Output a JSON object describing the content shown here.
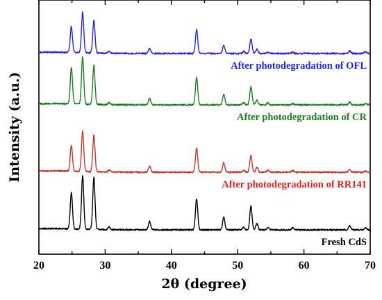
{
  "chart_data": {
    "type": "line",
    "title": "",
    "xlabel": "2θ (degree)",
    "ylabel": "Intensity (a.u.)",
    "xlim": [
      20,
      70
    ],
    "x_ticks": [
      20,
      30,
      40,
      50,
      60,
      70
    ],
    "y_ticks_labeled": false,
    "grid": false,
    "legend": "none (inline labels at right of each trace)",
    "peaks_2theta": [
      24.9,
      26.6,
      28.3,
      30.6,
      36.7,
      43.8,
      47.9,
      50.9,
      52.0,
      52.9,
      54.6,
      58.3,
      66.9,
      69.3
    ],
    "series": [
      {
        "name": "Fresh CdS",
        "color": "#000000",
        "label_color": "#000000",
        "offset": 0,
        "peaks": [
          {
            "x": 24.9,
            "h": 52
          },
          {
            "x": 26.6,
            "h": 77
          },
          {
            "x": 28.3,
            "h": 75
          },
          {
            "x": 30.6,
            "h": 4
          },
          {
            "x": 36.7,
            "h": 12
          },
          {
            "x": 43.8,
            "h": 45
          },
          {
            "x": 47.9,
            "h": 18
          },
          {
            "x": 50.9,
            "h": 4
          },
          {
            "x": 52.0,
            "h": 34
          },
          {
            "x": 52.9,
            "h": 9
          },
          {
            "x": 54.6,
            "h": 3
          },
          {
            "x": 58.3,
            "h": 3
          },
          {
            "x": 66.9,
            "h": 6
          },
          {
            "x": 69.3,
            "h": 3
          }
        ]
      },
      {
        "name": "After photodegradation of RR141",
        "color": "#c0392b",
        "label_color": "#e02020",
        "offset": 83,
        "peaks": [
          {
            "x": 24.9,
            "h": 37
          },
          {
            "x": 26.6,
            "h": 58
          },
          {
            "x": 28.3,
            "h": 53
          },
          {
            "x": 30.6,
            "h": 3
          },
          {
            "x": 36.7,
            "h": 9
          },
          {
            "x": 43.8,
            "h": 35
          },
          {
            "x": 47.9,
            "h": 14
          },
          {
            "x": 50.9,
            "h": 3
          },
          {
            "x": 52.0,
            "h": 24
          },
          {
            "x": 52.9,
            "h": 7
          },
          {
            "x": 54.6,
            "h": 3
          },
          {
            "x": 58.3,
            "h": 2
          },
          {
            "x": 66.9,
            "h": 4
          },
          {
            "x": 69.3,
            "h": 2
          }
        ]
      },
      {
        "name": "After photodegradation of CR",
        "color": "#1e7d1e",
        "label_color": "#1e7d1e",
        "offset": 180,
        "peaks": [
          {
            "x": 24.9,
            "h": 52
          },
          {
            "x": 26.6,
            "h": 68
          },
          {
            "x": 28.3,
            "h": 56
          },
          {
            "x": 30.6,
            "h": 3
          },
          {
            "x": 36.7,
            "h": 9
          },
          {
            "x": 43.8,
            "h": 40
          },
          {
            "x": 47.9,
            "h": 15
          },
          {
            "x": 50.9,
            "h": 3
          },
          {
            "x": 52.0,
            "h": 26
          },
          {
            "x": 52.9,
            "h": 7
          },
          {
            "x": 54.6,
            "h": 3
          },
          {
            "x": 58.3,
            "h": 2
          },
          {
            "x": 66.9,
            "h": 4
          },
          {
            "x": 69.3,
            "h": 2
          }
        ]
      },
      {
        "name": "After photodegradation of OFL",
        "color": "#2424e0",
        "label_color": "#2424e0",
        "offset": 254,
        "peaks": [
          {
            "x": 24.9,
            "h": 37
          },
          {
            "x": 26.6,
            "h": 58
          },
          {
            "x": 28.3,
            "h": 47
          },
          {
            "x": 30.6,
            "h": 3
          },
          {
            "x": 36.7,
            "h": 7
          },
          {
            "x": 43.8,
            "h": 34
          },
          {
            "x": 47.9,
            "h": 12
          },
          {
            "x": 50.9,
            "h": 3
          },
          {
            "x": 52.0,
            "h": 21
          },
          {
            "x": 52.9,
            "h": 6
          },
          {
            "x": 54.6,
            "h": 2
          },
          {
            "x": 58.3,
            "h": 2
          },
          {
            "x": 66.9,
            "h": 4
          },
          {
            "x": 69.3,
            "h": 2
          }
        ]
      }
    ]
  }
}
